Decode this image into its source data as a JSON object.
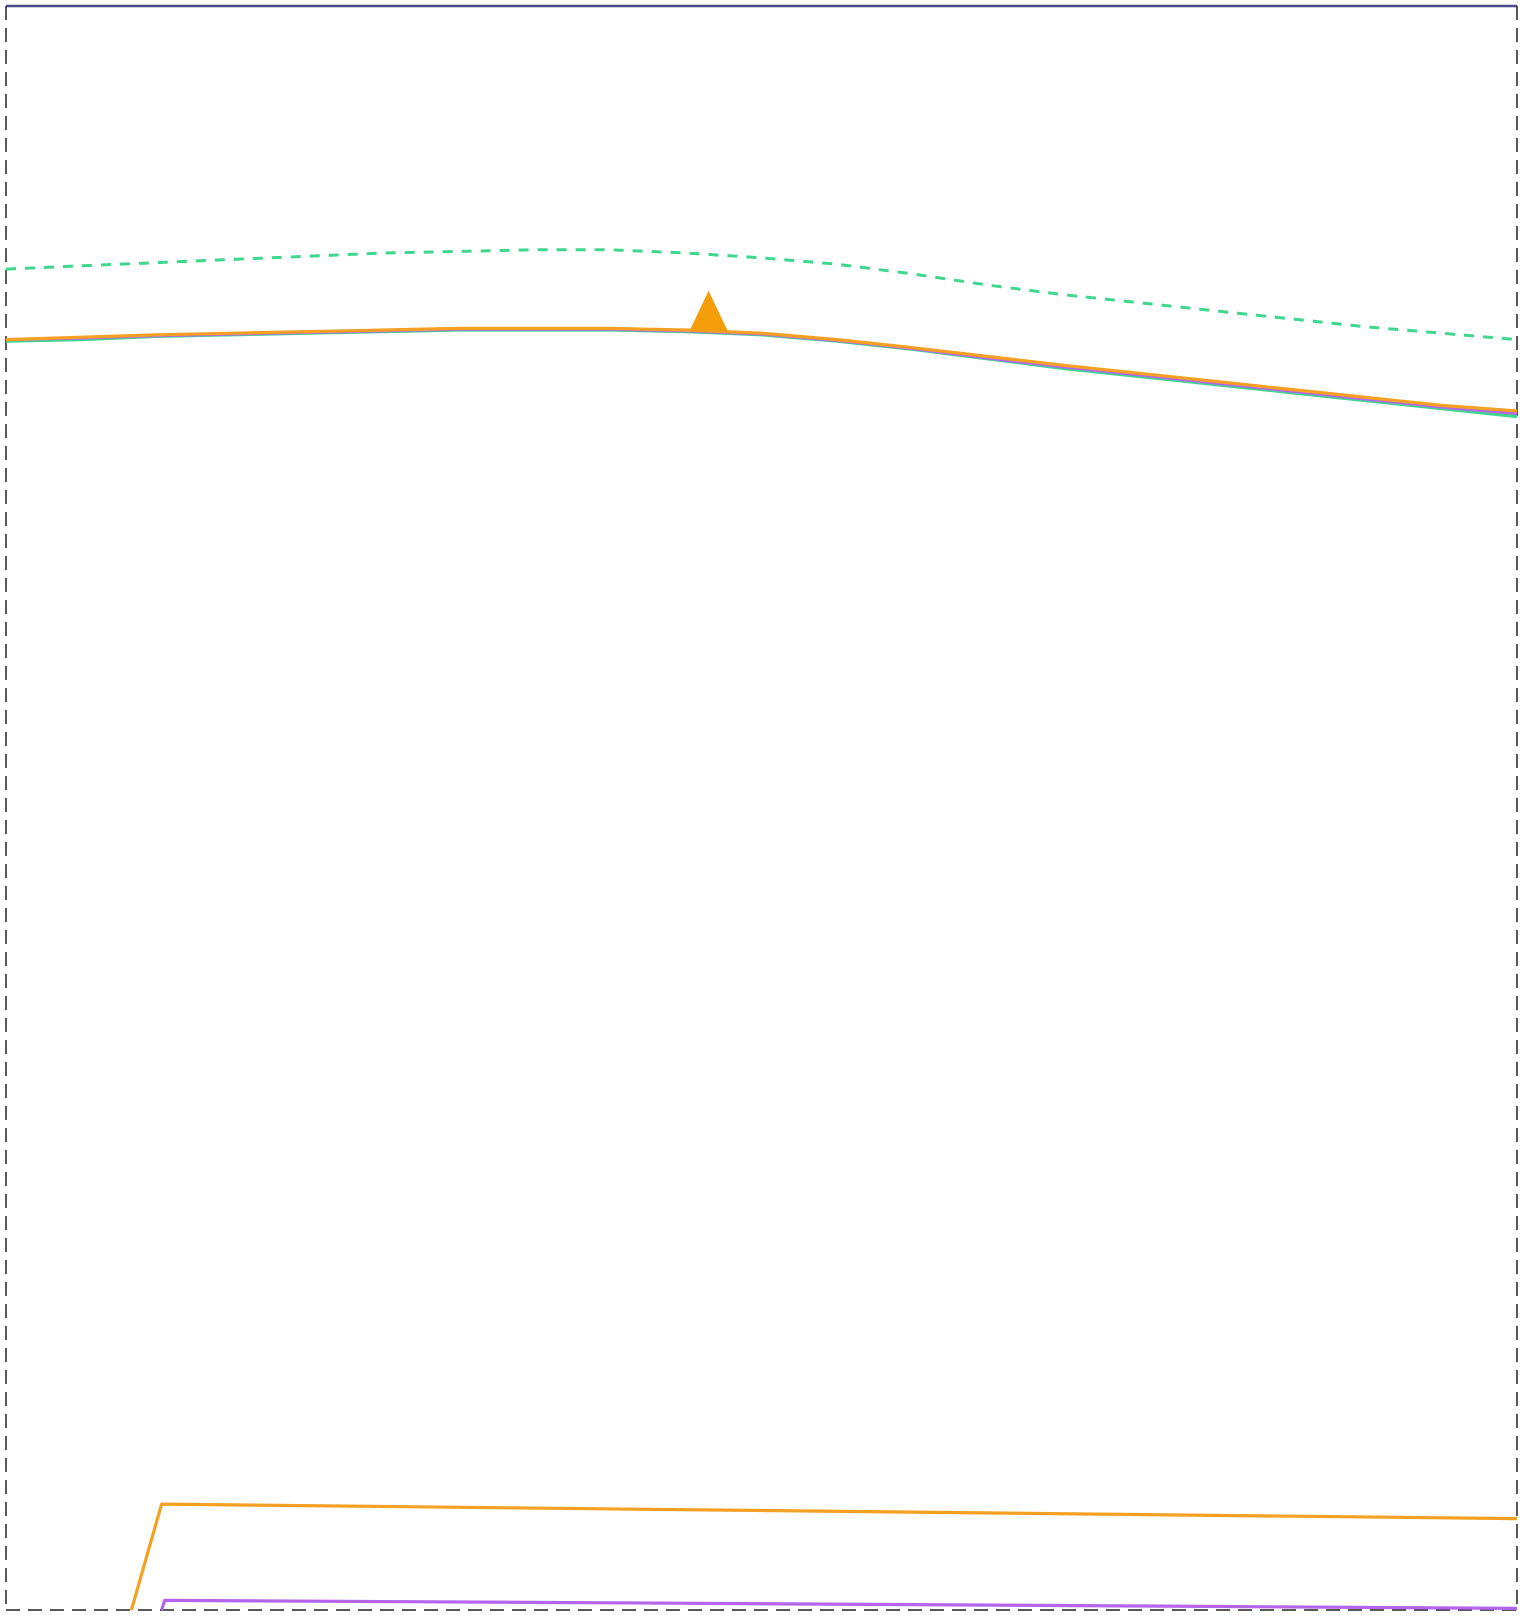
{
  "chart_data": {
    "type": "line",
    "title": "",
    "xlabel": "",
    "ylabel": "",
    "xlim": [
      0,
      100
    ],
    "ylim": [
      0,
      100
    ],
    "grid": false,
    "legend": "none",
    "frame": {
      "left_color": "#222222",
      "right_color": "#222222",
      "bottom_color": "#222222",
      "top_color": "#4b4a8a",
      "left_style": "dashed",
      "right_style": "dashed",
      "bottom_style": "dashed",
      "top_style": "solid"
    },
    "series": [
      {
        "color": "#3fd68e",
        "style": "dashed",
        "points": [
          [
            0,
            83.6
          ],
          [
            5,
            83.8
          ],
          [
            10,
            84.0
          ],
          [
            15,
            84.2
          ],
          [
            20,
            84.4
          ],
          [
            25,
            84.6
          ],
          [
            30,
            84.7
          ],
          [
            35,
            84.8
          ],
          [
            40,
            84.8
          ],
          [
            45,
            84.6
          ],
          [
            50,
            84.3
          ],
          [
            55,
            83.9
          ],
          [
            60,
            83.3
          ],
          [
            65,
            82.6
          ],
          [
            70,
            82.0
          ],
          [
            75,
            81.5
          ],
          [
            80,
            81.0
          ],
          [
            85,
            80.5
          ],
          [
            90,
            80.0
          ],
          [
            95,
            79.6
          ],
          [
            100,
            79.2
          ]
        ]
      },
      {
        "color": "#3fd68e",
        "style": "solid",
        "points": [
          [
            0,
            79.1
          ],
          [
            5,
            79.2
          ],
          [
            10,
            79.4
          ],
          [
            15,
            79.5
          ],
          [
            20,
            79.6
          ],
          [
            25,
            79.7
          ],
          [
            30,
            79.8
          ],
          [
            35,
            79.8
          ],
          [
            40,
            79.8
          ],
          [
            45,
            79.7
          ],
          [
            50,
            79.5
          ],
          [
            55,
            79.1
          ],
          [
            60,
            78.6
          ],
          [
            65,
            78.0
          ],
          [
            70,
            77.4
          ],
          [
            75,
            76.9
          ],
          [
            80,
            76.4
          ],
          [
            85,
            75.9
          ],
          [
            90,
            75.4
          ],
          [
            95,
            74.9
          ],
          [
            100,
            74.4
          ]
        ]
      },
      {
        "color": "#b565ec",
        "style": "solid",
        "points": [
          [
            0,
            79.2
          ],
          [
            5,
            79.3
          ],
          [
            10,
            79.45
          ],
          [
            15,
            79.55
          ],
          [
            20,
            79.65
          ],
          [
            25,
            79.75
          ],
          [
            30,
            79.85
          ],
          [
            35,
            79.85
          ],
          [
            40,
            79.85
          ],
          [
            45,
            79.75
          ],
          [
            50,
            79.55
          ],
          [
            55,
            79.15
          ],
          [
            60,
            78.65
          ],
          [
            65,
            78.05
          ],
          [
            70,
            77.5
          ],
          [
            75,
            77.0
          ],
          [
            80,
            76.5
          ],
          [
            85,
            76.0
          ],
          [
            90,
            75.5
          ],
          [
            95,
            75.0
          ],
          [
            100,
            74.6
          ]
        ]
      },
      {
        "color": "#f5a023",
        "style": "solid",
        "points": [
          [
            0,
            79.2
          ],
          [
            5,
            79.35
          ],
          [
            10,
            79.5
          ],
          [
            15,
            79.6
          ],
          [
            20,
            79.7
          ],
          [
            25,
            79.8
          ],
          [
            30,
            79.9
          ],
          [
            35,
            79.9
          ],
          [
            40,
            79.9
          ],
          [
            45,
            79.8
          ],
          [
            50,
            79.6
          ],
          [
            55,
            79.2
          ],
          [
            60,
            78.7
          ],
          [
            65,
            78.15
          ],
          [
            70,
            77.6
          ],
          [
            75,
            77.1
          ],
          [
            80,
            76.6
          ],
          [
            85,
            76.1
          ],
          [
            90,
            75.6
          ],
          [
            95,
            75.1
          ],
          [
            100,
            74.75
          ]
        ]
      },
      {
        "color": "#f5a023",
        "style": "solid",
        "points": [
          [
            8.3,
            0
          ],
          [
            10.3,
            6.6
          ],
          [
            100,
            5.7
          ]
        ]
      },
      {
        "color": "#b565ec",
        "style": "solid",
        "points": [
          [
            10.3,
            0
          ],
          [
            10.5,
            0.6
          ],
          [
            40,
            0.45
          ],
          [
            75,
            0.25
          ],
          [
            100,
            0.1
          ]
        ]
      }
    ],
    "markers": [
      {
        "shape": "triangle",
        "color": "#f59e0b",
        "x": 46.5,
        "y": 81.0
      }
    ]
  }
}
